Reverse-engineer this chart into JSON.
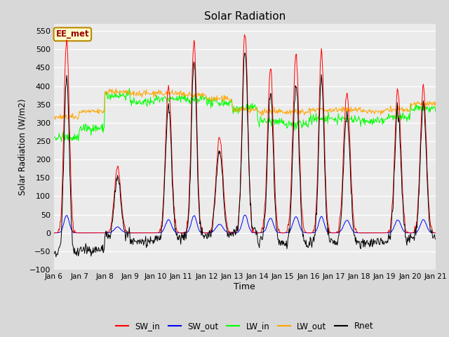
{
  "title": "Solar Radiation",
  "xlabel": "Time",
  "ylabel": "Solar Radiation (W/m2)",
  "ylim": [
    -100,
    570
  ],
  "yticks": [
    -100,
    -50,
    0,
    50,
    100,
    150,
    200,
    250,
    300,
    350,
    400,
    450,
    500,
    550
  ],
  "fig_bg_color": "#d8d8d8",
  "plot_bg_color": "#ebebeb",
  "legend_labels": [
    "SW_in",
    "SW_out",
    "LW_in",
    "LW_out",
    "Rnet"
  ],
  "legend_colors": [
    "red",
    "blue",
    "lime",
    "orange",
    "black"
  ],
  "annotation_text": "EE_met",
  "annotation_bg": "#ffffcc",
  "annotation_border": "#bb8800",
  "annotation_text_color": "#990000",
  "n_days": 15,
  "dt_minutes": 30,
  "start_day": 6,
  "SW_in_peak": [
    530,
    0,
    180,
    0,
    400,
    520,
    260,
    545,
    450,
    485,
    495,
    385,
    0,
    390,
    400
  ],
  "SW_in_width": [
    2.5,
    0,
    3.0,
    0,
    2.8,
    2.5,
    3.2,
    2.6,
    2.7,
    2.8,
    2.5,
    3.0,
    0,
    2.9,
    2.8
  ],
  "LW_in_by_day": [
    260,
    285,
    375,
    355,
    365,
    365,
    355,
    340,
    305,
    295,
    310,
    310,
    305,
    315,
    340
  ],
  "LW_out_by_day": [
    315,
    330,
    385,
    380,
    380,
    375,
    365,
    335,
    330,
    330,
    335,
    335,
    330,
    335,
    350
  ],
  "grid_color": "white",
  "grid_linewidth": 1.0,
  "line_width": 0.7
}
